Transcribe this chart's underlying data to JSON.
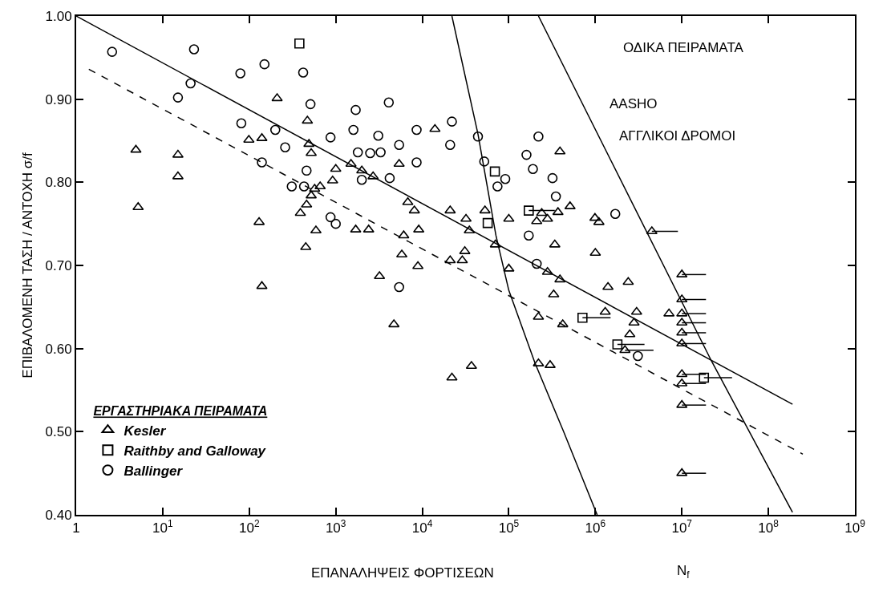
{
  "chart_data": {
    "type": "scatter",
    "xlabel": "ΕΠΑΝΑΛΗΨΕΙΣ ΦΟΡΤΙΣΕΩΝ",
    "ylabel": "ΕΠΙΒΑΛΟΜΕΝΗ ΤΑΣΗ / ΑΝΤΟΧΗ σ/f",
    "legend_title": "ΕΡΓΑΣΤΗΡΙΑΚΑ ΠΕΙΡΑΜΑΤΑ",
    "legend": "bottom left",
    "log": "x",
    "xlim": [
      1,
      1000000000
    ],
    "xticks": [
      1,
      {
        "value": 10,
        "label": "10$^{1}$"
      },
      {
        "value": 100,
        "label": "10$^{2}$"
      },
      {
        "value": 1000,
        "label": "10$^{3}$"
      },
      {
        "value": 10000,
        "label": "10$^{4}$"
      },
      {
        "value": 100000,
        "label": "10$^{5}$"
      },
      {
        "value": 1000000,
        "label": "10$^{6}$"
      },
      {
        "value": 10000000,
        "label": "10$^{7}$"
      },
      {
        "value": 100000000,
        "label": "10$^{8}$"
      },
      {
        "value": 1000000000,
        "label": "10$^{9}$"
      }
    ],
    "ylim": [
      0.4,
      1.0
    ],
    "yticks": [
      {
        "value": 0.4,
        "label": "0.40"
      },
      {
        "value": 0.5,
        "label": "0.50"
      },
      {
        "value": 0.6,
        "label": "0.60"
      },
      {
        "value": 0.7,
        "label": "0.70"
      },
      {
        "value": 0.8,
        "label": "0.80"
      },
      {
        "value": 0.9,
        "label": "0.90"
      },
      {
        "value": 1.0,
        "label": "1.00"
      }
    ],
    "annotations": [
      "AASHO",
      "ΑΓΓΛΙΚΟΙ ΔΡΟΜΟΙ",
      "ΟΔΙΚΑ ΠΕΙΡΑΜΑΤΑ",
      "N$_{f}$"
    ],
    "series": [
      {
        "name": "Kesler",
        "marker": "triangle",
        "color": "#000000",
        "x": [
          4.9,
          15,
          15,
          5.2,
          140,
          210,
          470,
          99,
          140,
          490,
          520,
          1000,
          920,
          660,
          570,
          520,
          460,
          390,
          130,
          590,
          450,
          14000,
          5400,
          1500,
          2000,
          2700,
          1700,
          2400,
          6800,
          8100,
          9100,
          6100,
          5800,
          8900,
          21000,
          32000,
          35000,
          53000,
          31000,
          21000,
          29000,
          70000,
          100000,
          100000,
          240000,
          210000,
          280000,
          370000,
          510000,
          340000,
          390000,
          990000,
          1000000,
          280000,
          3200,
          4700,
          37000,
          22000,
          390000,
          330000,
          220000,
          420000,
          220000,
          300000,
          1100000,
          4500000,
          1400000,
          2400000,
          1300000,
          3000000,
          2800000,
          2500000,
          2200000,
          7100000,
          10000000,
          10000000,
          10000000,
          10000000,
          10000000,
          10000000,
          10000000,
          10000000,
          10000000,
          10000000
        ],
        "values": [
          0.839,
          0.833,
          0.807,
          0.77,
          0.675,
          0.901,
          0.874,
          0.851,
          0.853,
          0.846,
          0.835,
          0.816,
          0.802,
          0.795,
          0.792,
          0.784,
          0.773,
          0.763,
          0.752,
          0.742,
          0.722,
          0.864,
          0.822,
          0.822,
          0.814,
          0.807,
          0.743,
          0.743,
          0.776,
          0.766,
          0.743,
          0.736,
          0.713,
          0.699,
          0.766,
          0.756,
          0.742,
          0.766,
          0.717,
          0.706,
          0.706,
          0.725,
          0.756,
          0.696,
          0.763,
          0.753,
          0.756,
          0.764,
          0.771,
          0.725,
          0.837,
          0.757,
          0.715,
          0.692,
          0.687,
          0.629,
          0.579,
          0.565,
          0.683,
          0.665,
          0.638,
          0.629,
          0.582,
          0.58,
          0.752,
          0.741,
          0.674,
          0.68,
          0.644,
          0.644,
          0.631,
          0.617,
          0.598,
          0.642,
          0.689,
          0.659,
          0.642,
          0.631,
          0.619,
          0.606,
          0.569,
          0.558,
          0.532,
          0.45
        ]
      },
      {
        "name": "Raithby and Galloway",
        "marker": "square",
        "color": "#000000",
        "x": [
          380,
          69000,
          57000,
          170000,
          710000,
          1800000,
          18000000
        ],
        "values": [
          0.967,
          0.813,
          0.751,
          0.766,
          0.637,
          0.605,
          0.565
        ]
      },
      {
        "name": "Ballinger",
        "marker": "circle",
        "color": "#000000",
        "x": [
          2.6,
          23,
          21,
          15,
          79,
          150,
          420,
          510,
          81,
          200,
          870,
          260,
          140,
          460,
          310,
          430,
          870,
          1000,
          1700,
          4100,
          1600,
          3100,
          8600,
          22000,
          21000,
          5400,
          1800,
          2500,
          3300,
          8600,
          2000,
          4200,
          44000,
          52000,
          91000,
          74000,
          220000,
          160000,
          190000,
          320000,
          350000,
          170000,
          210000,
          5400,
          1700000,
          3100000
        ],
        "values": [
          0.957,
          0.96,
          0.919,
          0.902,
          0.931,
          0.942,
          0.932,
          0.894,
          0.871,
          0.863,
          0.854,
          0.842,
          0.824,
          0.814,
          0.795,
          0.795,
          0.758,
          0.75,
          0.887,
          0.896,
          0.863,
          0.856,
          0.863,
          0.873,
          0.845,
          0.845,
          0.836,
          0.835,
          0.836,
          0.824,
          0.803,
          0.805,
          0.855,
          0.825,
          0.804,
          0.795,
          0.855,
          0.833,
          0.816,
          0.805,
          0.783,
          0.736,
          0.702,
          0.674,
          0.762,
          0.591
        ]
      },
      {
        "type": "line",
        "line_style": "solid",
        "color": "#000000",
        "x": [
          1,
          190000000
        ],
        "values": [
          1.0,
          0.533
        ]
      },
      {
        "type": "line",
        "line_style": "dashed",
        "color": "#000000",
        "x": [
          1.4,
          250000000
        ],
        "values": [
          0.936,
          0.473
        ]
      },
      {
        "type": "line",
        "line_style": "solid",
        "color": "#000000",
        "x": [
          22000,
          44000,
          71000,
          100000,
          200000,
          430000,
          1050000
        ],
        "values": [
          1.0,
          0.858,
          0.736,
          0.67,
          0.583,
          0.5,
          0.4
        ]
      },
      {
        "type": "line",
        "line_style": "solid",
        "color": "#000000",
        "x": [
          220000,
          22000000,
          190000000
        ],
        "values": [
          1.0,
          0.585,
          0.403
        ]
      },
      {
        "type": "line",
        "color": "#000000",
        "x": [
          170000,
          340000
        ],
        "values": [
          0.766,
          0.766
        ]
      },
      {
        "type": "line",
        "color": "#000000",
        "x": [
          710000,
          1500000
        ],
        "values": [
          0.637,
          0.637
        ]
      },
      {
        "type": "line",
        "color": "#000000",
        "x": [
          1800000,
          3700000
        ],
        "values": [
          0.605,
          0.605
        ]
      },
      {
        "type": "line",
        "color": "#000000",
        "x": [
          18000000,
          38000000
        ],
        "values": [
          0.565,
          0.565
        ]
      },
      {
        "type": "line",
        "color": "#000000",
        "x": [
          4500000,
          9000000
        ],
        "values": [
          0.741,
          0.741
        ]
      },
      {
        "type": "line",
        "color": "#000000",
        "x": [
          2200000,
          4700000
        ],
        "values": [
          0.598,
          0.598
        ]
      },
      {
        "type": "line",
        "color": "#000000",
        "x": [
          10000000,
          19000000
        ],
        "values": [
          0.689,
          0.689
        ]
      },
      {
        "type": "line",
        "color": "#000000",
        "x": [
          10000000,
          19000000
        ],
        "values": [
          0.659,
          0.659
        ]
      },
      {
        "type": "line",
        "color": "#000000",
        "x": [
          10000000,
          19000000
        ],
        "values": [
          0.642,
          0.642
        ]
      },
      {
        "type": "line",
        "color": "#000000",
        "x": [
          10000000,
          19000000
        ],
        "values": [
          0.631,
          0.631
        ]
      },
      {
        "type": "line",
        "color": "#000000",
        "x": [
          10000000,
          19000000
        ],
        "values": [
          0.619,
          0.619
        ]
      },
      {
        "type": "line",
        "color": "#000000",
        "x": [
          10000000,
          19000000
        ],
        "values": [
          0.606,
          0.606
        ]
      },
      {
        "type": "line",
        "color": "#000000",
        "x": [
          10000000,
          19000000
        ],
        "values": [
          0.569,
          0.569
        ]
      },
      {
        "type": "line",
        "color": "#000000",
        "x": [
          10000000,
          19000000
        ],
        "values": [
          0.558,
          0.558
        ]
      },
      {
        "type": "line",
        "color": "#000000",
        "x": [
          10000000,
          19000000
        ],
        "values": [
          0.532,
          0.532
        ]
      },
      {
        "type": "line",
        "color": "#000000",
        "x": [
          10000000,
          19000000
        ],
        "values": [
          0.45,
          0.45
        ]
      }
    ]
  }
}
